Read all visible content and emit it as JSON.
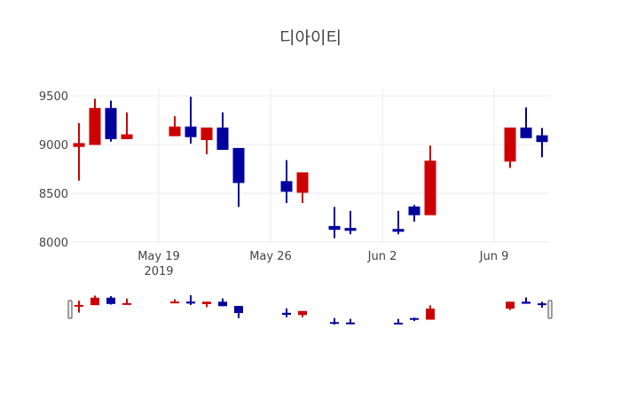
{
  "chart_data": {
    "type": "candlestick",
    "title": "디아이티",
    "xlabel": "",
    "ylabel": "",
    "ylim": [
      7980,
      9580
    ],
    "yticks": [
      8000,
      8500,
      9000,
      9500
    ],
    "xticks": [
      {
        "label": "May 19",
        "sub": "2019",
        "date": "2019-05-19"
      },
      {
        "label": "May 26",
        "sub": "",
        "date": "2019-05-26"
      },
      {
        "label": "Jun 2",
        "sub": "",
        "date": "2019-06-02"
      },
      {
        "label": "Jun 9",
        "sub": "",
        "date": "2019-06-09"
      }
    ],
    "x_range": [
      "2019-05-13T12:00",
      "2019-06-12T12:00"
    ],
    "grid": true,
    "legend": false,
    "rangeslider": true,
    "increasing_color": "#cc0000",
    "decreasing_color": "#0000a0",
    "candles": [
      {
        "date": "2019-05-14",
        "open": 8980,
        "high": 9220,
        "low": 8630,
        "close": 9010
      },
      {
        "date": "2019-05-15",
        "open": 9000,
        "high": 9470,
        "low": 9000,
        "close": 9370
      },
      {
        "date": "2019-05-16",
        "open": 9370,
        "high": 9450,
        "low": 9030,
        "close": 9060
      },
      {
        "date": "2019-05-17",
        "open": 9060,
        "high": 9330,
        "low": 9060,
        "close": 9100
      },
      {
        "date": "2019-05-20",
        "open": 9090,
        "high": 9290,
        "low": 9090,
        "close": 9180
      },
      {
        "date": "2019-05-21",
        "open": 9180,
        "high": 9490,
        "low": 9010,
        "close": 9080
      },
      {
        "date": "2019-05-22",
        "open": 9050,
        "high": 9170,
        "low": 8900,
        "close": 9170
      },
      {
        "date": "2019-05-23",
        "open": 9170,
        "high": 9330,
        "low": 8950,
        "close": 8950
      },
      {
        "date": "2019-05-24",
        "open": 8960,
        "high": 8960,
        "low": 8360,
        "close": 8610
      },
      {
        "date": "2019-05-27",
        "open": 8620,
        "high": 8840,
        "low": 8400,
        "close": 8520
      },
      {
        "date": "2019-05-28",
        "open": 8510,
        "high": 8710,
        "low": 8400,
        "close": 8710
      },
      {
        "date": "2019-05-30",
        "open": 8160,
        "high": 8360,
        "low": 8040,
        "close": 8130
      },
      {
        "date": "2019-05-31",
        "open": 8140,
        "high": 8320,
        "low": 8080,
        "close": 8120
      },
      {
        "date": "2019-06-03",
        "open": 8130,
        "high": 8320,
        "low": 8080,
        "close": 8110
      },
      {
        "date": "2019-06-04",
        "open": 8360,
        "high": 8380,
        "low": 8210,
        "close": 8280
      },
      {
        "date": "2019-06-05",
        "open": 8280,
        "high": 8990,
        "low": 8280,
        "close": 8830
      },
      {
        "date": "2019-06-10",
        "open": 8830,
        "high": 9170,
        "low": 8760,
        "close": 9170
      },
      {
        "date": "2019-06-11",
        "open": 9170,
        "high": 9380,
        "low": 9070,
        "close": 9070
      },
      {
        "date": "2019-06-12",
        "open": 9090,
        "high": 9170,
        "low": 8870,
        "close": 9030
      }
    ]
  }
}
